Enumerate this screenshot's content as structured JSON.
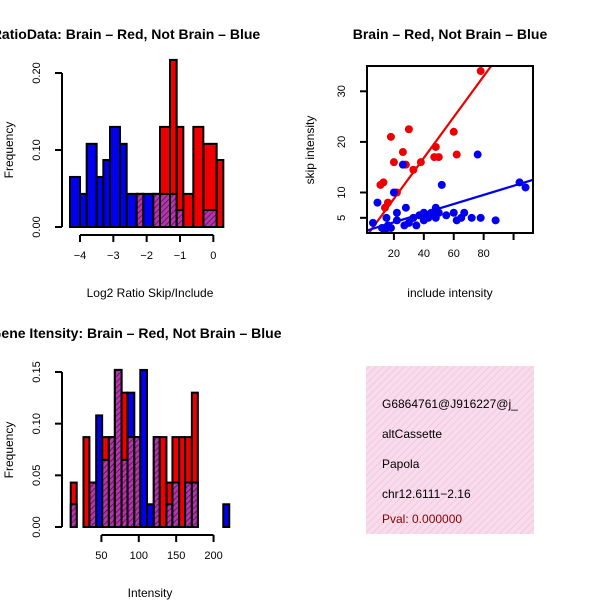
{
  "colors": {
    "red": "#ee0000",
    "blue": "#0000ee",
    "overlap": "#8b1a8b",
    "info_bg": "#f8dcec",
    "info_hatch": "#f0c0dc",
    "pval": "#8b0000"
  },
  "chart_data": [
    {
      "id": "ratio",
      "type": "bar",
      "title": "RatioData: Brain – Red, Not Brain – Blue",
      "xlabel": "Log2 Ratio Skip/Include",
      "ylabel": "Frequency",
      "xlim": [
        -4.3,
        0.5
      ],
      "ylim": [
        0,
        0.2
      ],
      "xticks": [
        -4,
        -3,
        -2,
        -1,
        0
      ],
      "xtick_labels": [
        "−4",
        "−3",
        "−2",
        "−1",
        "0"
      ],
      "yticks": [
        0,
        0.1,
        0.2
      ],
      "ytick_labels": [
        "0.00",
        "0.10",
        "0.20"
      ],
      "series": [
        {
          "name": "Not Brain",
          "color": "blue",
          "bars": [
            [
              -4.3,
              -4.0,
              0.065
            ],
            [
              -4.0,
              -3.8,
              0.043
            ],
            [
              -3.8,
              -3.5,
              0.108
            ],
            [
              -3.5,
              -3.3,
              0.065
            ],
            [
              -3.3,
              -3.1,
              0.087
            ],
            [
              -3.1,
              -2.8,
              0.13
            ],
            [
              -2.8,
              -2.6,
              0.108
            ],
            [
              -2.6,
              -2.3,
              0.043
            ],
            [
              -2.3,
              -2.1,
              0.043
            ],
            [
              -2.1,
              -1.8,
              0.043
            ],
            [
              -1.8,
              -1.6,
              0.043
            ],
            [
              -1.6,
              -1.3,
              0.043
            ],
            [
              -1.3,
              -1.1,
              0.043
            ],
            [
              -1.1,
              -0.9,
              0.022
            ],
            [
              -0.3,
              0.1,
              0.022
            ]
          ]
        },
        {
          "name": "Brain",
          "color": "red",
          "bars": [
            [
              -2.3,
              -2.1,
              0.043
            ],
            [
              -1.8,
              -1.6,
              0.043
            ],
            [
              -1.6,
              -1.3,
              0.13
            ],
            [
              -1.3,
              -1.1,
              0.217
            ],
            [
              -1.1,
              -0.9,
              0.13
            ],
            [
              -0.9,
              -0.6,
              0.043
            ],
            [
              -0.6,
              -0.3,
              0.13
            ],
            [
              -0.3,
              0.1,
              0.108
            ],
            [
              0.1,
              0.3,
              0.087
            ]
          ]
        }
      ]
    },
    {
      "id": "scatter",
      "type": "scatter",
      "title": "Brain – Red, Not Brain – Blue",
      "xlabel": "include intensity",
      "ylabel": "skip intensity",
      "xlim": [
        2,
        113
      ],
      "ylim": [
        2,
        35
      ],
      "xticks": [
        20,
        40,
        60,
        80
      ],
      "yticks": [
        5,
        10,
        20,
        30
      ],
      "series": [
        {
          "name": "Brain",
          "color": "red",
          "points": [
            [
              11,
              11.5
            ],
            [
              13,
              12
            ],
            [
              14,
              7
            ],
            [
              16,
              8
            ],
            [
              18,
              21
            ],
            [
              20,
              16
            ],
            [
              22,
              10
            ],
            [
              26,
              18
            ],
            [
              28,
              15.5
            ],
            [
              30,
              22.5
            ],
            [
              33,
              14.5
            ],
            [
              38,
              16
            ],
            [
              47,
              17
            ],
            [
              48,
              19
            ],
            [
              50,
              17
            ],
            [
              60,
              22
            ],
            [
              62,
              17.5
            ],
            [
              78,
              34
            ]
          ],
          "fit": [
            [
              2,
              1.5
            ],
            [
              85,
              35
            ]
          ]
        },
        {
          "name": "Not Brain",
          "color": "blue",
          "points": [
            [
              6,
              4
            ],
            [
              9,
              8
            ],
            [
              12,
              3
            ],
            [
              14,
              2.5
            ],
            [
              15,
              5
            ],
            [
              16,
              3.5
            ],
            [
              18,
              3
            ],
            [
              20,
              10
            ],
            [
              22,
              6
            ],
            [
              22,
              4.5
            ],
            [
              26,
              15.5
            ],
            [
              27,
              3.5
            ],
            [
              28,
              7
            ],
            [
              30,
              4
            ],
            [
              33,
              5
            ],
            [
              35,
              3.5
            ],
            [
              37,
              5.5
            ],
            [
              40,
              4.5
            ],
            [
              40,
              6
            ],
            [
              43,
              5
            ],
            [
              45,
              6
            ],
            [
              48,
              5
            ],
            [
              48,
              7
            ],
            [
              50,
              6
            ],
            [
              52,
              11.5
            ],
            [
              55,
              5.5
            ],
            [
              60,
              6
            ],
            [
              62,
              4.5
            ],
            [
              65,
              5
            ],
            [
              67,
              6
            ],
            [
              72,
              5
            ],
            [
              76,
              17.5
            ],
            [
              78,
              5
            ],
            [
              88,
              4.5
            ],
            [
              104,
              12
            ],
            [
              108,
              11
            ]
          ],
          "fit": [
            [
              2,
              2.5
            ],
            [
              113,
              12.5
            ]
          ]
        }
      ]
    },
    {
      "id": "intensity",
      "type": "bar",
      "title": "Gene Itensity: Brain – Red, Not Brain – Blue",
      "xlabel": "Intensity",
      "ylabel": "Frequency",
      "xlim": [
        8,
        222
      ],
      "ylim": [
        0,
        0.15
      ],
      "xticks": [
        50,
        100,
        150,
        200
      ],
      "xtick_labels": [
        "50",
        "100",
        "150",
        "200"
      ],
      "yticks": [
        0,
        0.05,
        0.1,
        0.15
      ],
      "ytick_labels": [
        "0.00",
        "0.05",
        "0.10",
        "0.15"
      ],
      "series": [
        {
          "name": "Brain",
          "color": "red",
          "bars": [
            [
              9,
              17,
              0.043
            ],
            [
              26,
              34,
              0.087
            ],
            [
              34,
              43,
              0.043
            ],
            [
              51,
              60,
              0.087
            ],
            [
              60,
              68,
              0.087
            ],
            [
              68,
              77,
              0.152
            ],
            [
              77,
              85,
              0.13
            ],
            [
              85,
              94,
              0.087
            ],
            [
              94,
              102,
              0.087
            ],
            [
              120,
              128,
              0.087
            ],
            [
              128,
              137,
              0.087
            ],
            [
              137,
              145,
              0.043
            ],
            [
              145,
              154,
              0.087
            ],
            [
              154,
              162,
              0.087
            ],
            [
              162,
              171,
              0.087
            ],
            [
              171,
              179,
              0.13
            ]
          ]
        },
        {
          "name": "Not Brain",
          "color": "blue",
          "bars": [
            [
              9,
              17,
              0.022
            ],
            [
              34,
              43,
              0.043
            ],
            [
              43,
              51,
              0.108
            ],
            [
              51,
              60,
              0.065
            ],
            [
              60,
              68,
              0.087
            ],
            [
              68,
              77,
              0.152
            ],
            [
              77,
              85,
              0.065
            ],
            [
              85,
              94,
              0.13
            ],
            [
              94,
              102,
              0.087
            ],
            [
              102,
              111,
              0.152
            ],
            [
              111,
              120,
              0.022
            ],
            [
              120,
              128,
              0.087
            ],
            [
              137,
              145,
              0.022
            ],
            [
              145,
              154,
              0.043
            ],
            [
              162,
              171,
              0.043
            ],
            [
              171,
              179,
              0.043
            ],
            [
              213,
              221,
              0.022
            ]
          ]
        }
      ]
    }
  ],
  "info_panel": {
    "lines": [
      "G6864761@J916227@j_",
      "altCassette",
      "Papola",
      "chr12.6111−2.16"
    ],
    "pval": "Pval: 0.000000"
  }
}
